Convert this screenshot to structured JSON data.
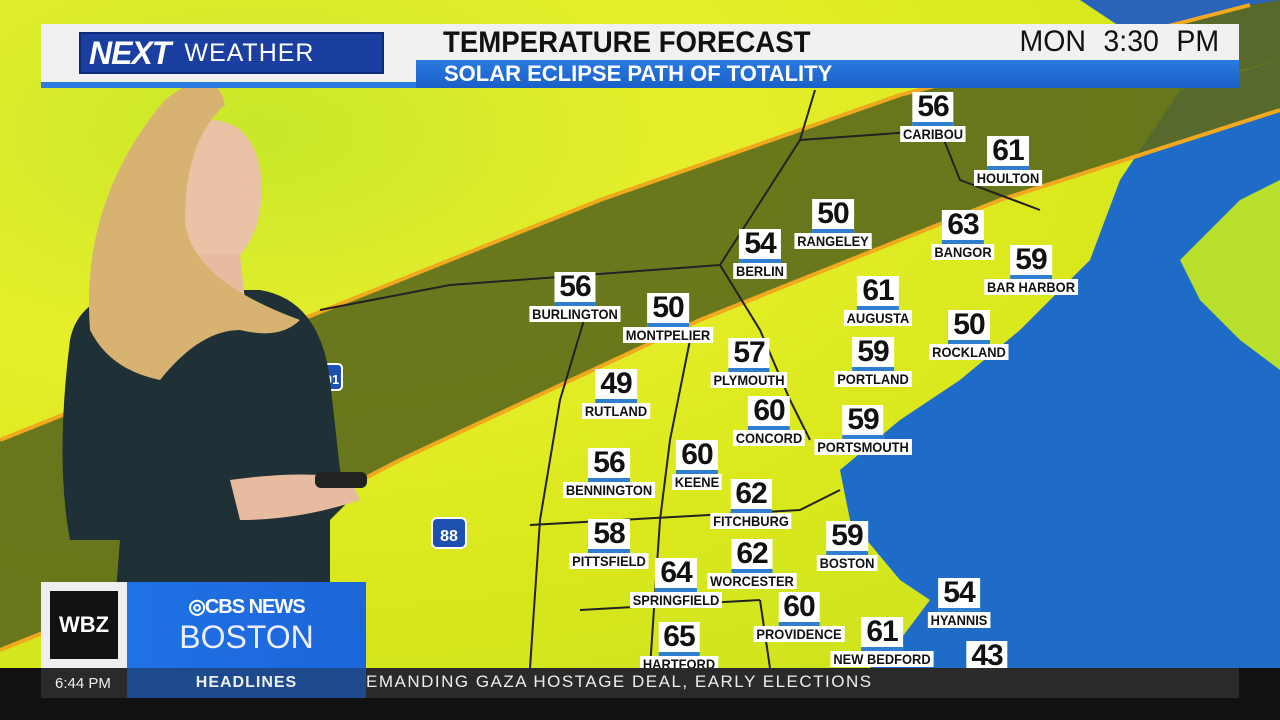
{
  "header": {
    "brand_next": "NEXT",
    "brand_weather": "WEATHER",
    "title": "TEMPERATURE FORECAST",
    "day": "MON",
    "time": "3:30 PM",
    "subtitle": "SOLAR ECLIPSE PATH OF TOTALITY"
  },
  "map": {
    "highway_markers": [
      "88",
      "91"
    ],
    "colors": {
      "land": "#dfe81e",
      "eclipse_path": "#5c6a1c",
      "path_edge": "#f0a81e",
      "ocean": "#1e6cc8",
      "number_underline": "#2f7fd0"
    },
    "cities": [
      {
        "name": "CARIBOU",
        "temp": "56"
      },
      {
        "name": "HOULTON",
        "temp": "61"
      },
      {
        "name": "RANGELEY",
        "temp": "50"
      },
      {
        "name": "BANGOR",
        "temp": "63"
      },
      {
        "name": "BERLIN",
        "temp": "54"
      },
      {
        "name": "BAR HARBOR",
        "temp": "59"
      },
      {
        "name": "BURLINGTON",
        "temp": "56"
      },
      {
        "name": "MONTPELIER",
        "temp": "50"
      },
      {
        "name": "AUGUSTA",
        "temp": "61"
      },
      {
        "name": "ROCKLAND",
        "temp": "50"
      },
      {
        "name": "PLYMOUTH",
        "temp": "57"
      },
      {
        "name": "PORTLAND",
        "temp": "59"
      },
      {
        "name": "RUTLAND",
        "temp": "49"
      },
      {
        "name": "CONCORD",
        "temp": "60"
      },
      {
        "name": "PORTSMOUTH",
        "temp": "59"
      },
      {
        "name": "KEENE",
        "temp": "60"
      },
      {
        "name": "BENNINGTON",
        "temp": "56"
      },
      {
        "name": "FITCHBURG",
        "temp": "62"
      },
      {
        "name": "PITTSFIELD",
        "temp": "58"
      },
      {
        "name": "BOSTON",
        "temp": "59"
      },
      {
        "name": "WORCESTER",
        "temp": "62"
      },
      {
        "name": "SPRINGFIELD",
        "temp": "64"
      },
      {
        "name": "PROVIDENCE",
        "temp": "60"
      },
      {
        "name": "HYANNIS",
        "temp": "54"
      },
      {
        "name": "HARTFORD",
        "temp": "65"
      },
      {
        "name": "NEW BEDFORD",
        "temp": "61"
      },
      {
        "name": "",
        "temp": "43"
      }
    ]
  },
  "station": {
    "call_sign": "WBZ",
    "network": "CBS NEWS",
    "city": "BOSTON"
  },
  "ticker": {
    "clock": "6:44 PM",
    "section": "HEADLINES",
    "text": "EMANDING GAZA HOSTAGE DEAL, EARLY ELECTIONS"
  }
}
